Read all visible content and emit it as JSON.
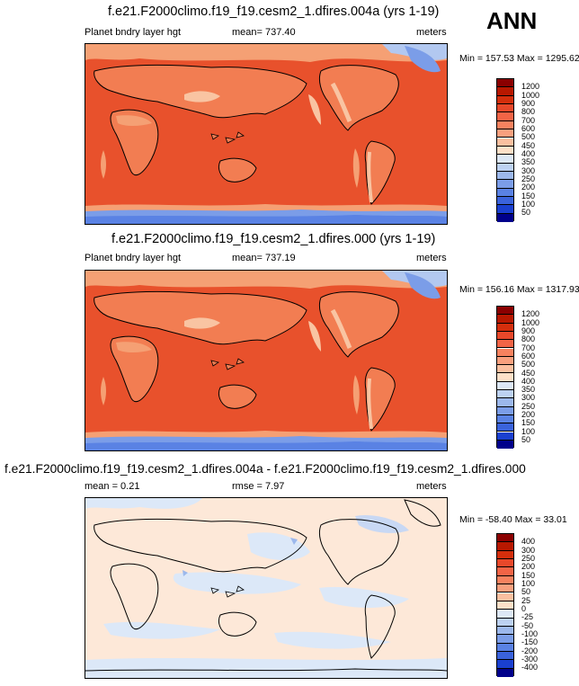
{
  "season": "ANN",
  "units": "meters",
  "panels": [
    {
      "title": "f.e21.F2000climo.f19_f19.cesm2_1.dfires.004a (yrs 1-19)",
      "variable": "Planet bndry layer hgt",
      "stat_text": "mean= 737.40",
      "minmax": "Min = 157.53 Max = 1295.62"
    },
    {
      "title": "f.e21.F2000climo.f19_f19.cesm2_1.dfires.000 (yrs 1-19)",
      "variable": "Planet bndry layer hgt",
      "stat_text": "mean= 737.19",
      "minmax": "Min = 156.16 Max = 1317.93"
    },
    {
      "title": "f.e21.F2000climo.f19_f19.cesm2_1.dfires.004a - f.e21.F2000climo.f19_f19.cesm2_1.dfires.000",
      "mean_text": "mean =   0.21",
      "rmse_text": "rmse =   7.97",
      "minmax": "Min = -58.40 Max =  33.01"
    }
  ],
  "colorbar_levels": [
    "1200",
    "1000",
    "900",
    "800",
    "700",
    "600",
    "500",
    "450",
    "400",
    "350",
    "300",
    "250",
    "200",
    "150",
    "100",
    "50"
  ],
  "colorbar_diff_levels": [
    "400",
    "300",
    "250",
    "200",
    "150",
    "100",
    "50",
    "25",
    "0",
    "-25",
    "-50",
    "-100",
    "-150",
    "-200",
    "-300",
    "-400"
  ],
  "colorbar_colors": [
    "#8b0000",
    "#b81800",
    "#d42e0c",
    "#e8482a",
    "#f26446",
    "#f7825f",
    "#f9a07e",
    "#fbc0a0",
    "#fde0c8",
    "#dde8f6",
    "#bdd2f2",
    "#9cb8ec",
    "#7b9de8",
    "#5a82e4",
    "#3a63dc",
    "#1a40d0",
    "#00008b"
  ],
  "map_colors": {
    "ocean_main": "#e8512c",
    "ocean_deep": "#d4401e",
    "land_warm": "#f27d52",
    "highlands": "#f5a074",
    "cold_land": "#f9c4a2",
    "polar": "#b2c8f0",
    "antarctic": "#5a82e4",
    "antarctic_edge": "#7b9de8",
    "diff_bg": "#fde8d8",
    "diff_blue": "#dce8f8",
    "diff_mid": "#c8d8f4",
    "coast": "#000000"
  }
}
